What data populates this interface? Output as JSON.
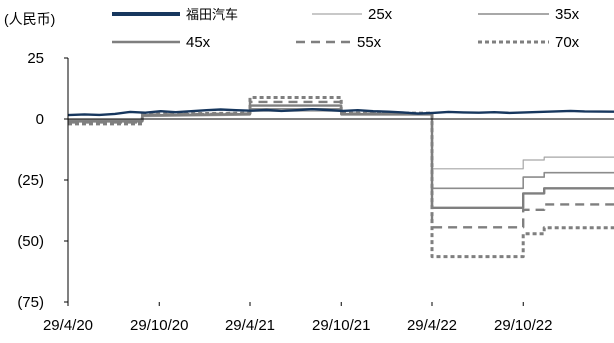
{
  "chart_data": {
    "type": "line",
    "unit_label": "(人民币)",
    "ylim": [
      -75,
      25
    ],
    "yticks": [
      25,
      0,
      -25,
      -50,
      -75
    ],
    "ytick_labels": [
      "25",
      "0",
      "(25)",
      "(50)",
      "(75)"
    ],
    "xlim": [
      "2020-04-29",
      "2023-04-29"
    ],
    "xticks": [
      "2020-04-29",
      "2020-10-29",
      "2021-04-29",
      "2021-10-29",
      "2022-04-29",
      "2022-10-29"
    ],
    "xtick_labels": [
      "29/4/20",
      "29/10/20",
      "29/4/21",
      "29/10/21",
      "29/4/22",
      "29/10/22"
    ],
    "grid": false,
    "legend_position": "top",
    "series": [
      {
        "name": "福田汽车",
        "color": "#17375E",
        "style": "solid-thick",
        "points": [
          [
            "2020-04-29",
            1.6
          ],
          [
            "2020-06-01",
            1.9
          ],
          [
            "2020-07-01",
            1.7
          ],
          [
            "2020-08-01",
            2.1
          ],
          [
            "2020-09-01",
            2.9
          ],
          [
            "2020-10-01",
            2.6
          ],
          [
            "2020-11-01",
            3.2
          ],
          [
            "2020-12-01",
            2.8
          ],
          [
            "2021-01-01",
            3.2
          ],
          [
            "2021-02-01",
            3.6
          ],
          [
            "2021-03-01",
            3.9
          ],
          [
            "2021-04-01",
            3.6
          ],
          [
            "2021-05-01",
            3.4
          ],
          [
            "2021-06-01",
            3.7
          ],
          [
            "2021-07-01",
            3.3
          ],
          [
            "2021-08-01",
            3.6
          ],
          [
            "2021-09-01",
            4.0
          ],
          [
            "2021-10-01",
            3.7
          ],
          [
            "2021-11-01",
            3.3
          ],
          [
            "2021-12-01",
            3.6
          ],
          [
            "2022-01-01",
            3.2
          ],
          [
            "2022-02-01",
            3.0
          ],
          [
            "2022-03-01",
            2.7
          ],
          [
            "2022-04-01",
            2.2
          ],
          [
            "2022-05-01",
            2.5
          ],
          [
            "2022-06-01",
            2.9
          ],
          [
            "2022-07-01",
            2.7
          ],
          [
            "2022-08-01",
            2.6
          ],
          [
            "2022-09-01",
            2.8
          ],
          [
            "2022-10-01",
            2.5
          ],
          [
            "2022-11-01",
            2.7
          ],
          [
            "2022-12-01",
            2.9
          ],
          [
            "2023-01-01",
            3.1
          ],
          [
            "2023-02-01",
            3.3
          ],
          [
            "2023-03-01",
            3.1
          ],
          [
            "2023-04-29",
            3.0
          ]
        ]
      },
      {
        "name": "25x",
        "color": "#A6A6A6",
        "style": "solid-thin",
        "points": [
          [
            "2020-04-29",
            -0.4
          ],
          [
            "2020-09-25",
            -0.4
          ],
          [
            "2020-09-25",
            1.0
          ],
          [
            "2021-04-29",
            1.6
          ],
          [
            "2021-04-29",
            3.2
          ],
          [
            "2021-10-29",
            3.2
          ],
          [
            "2021-10-29",
            1.6
          ],
          [
            "2022-04-29",
            1.6
          ],
          [
            "2022-04-29",
            -20.4
          ],
          [
            "2022-10-29",
            -20.4
          ],
          [
            "2022-10-29",
            -16.8
          ],
          [
            "2022-12-10",
            -16.8
          ],
          [
            "2022-12-10",
            -15.6
          ],
          [
            "2023-04-29",
            -15.6
          ]
        ]
      },
      {
        "name": "35x",
        "color": "#8C8C8C",
        "style": "solid-medium",
        "points": [
          [
            "2020-04-29",
            -0.7
          ],
          [
            "2020-09-25",
            -0.7
          ],
          [
            "2020-09-25",
            1.2
          ],
          [
            "2021-04-29",
            1.8
          ],
          [
            "2021-04-29",
            4.2
          ],
          [
            "2021-10-29",
            4.2
          ],
          [
            "2021-10-29",
            1.8
          ],
          [
            "2022-04-29",
            1.8
          ],
          [
            "2022-04-29",
            -28.4
          ],
          [
            "2022-10-29",
            -28.4
          ],
          [
            "2022-10-29",
            -23.8
          ],
          [
            "2022-12-10",
            -23.8
          ],
          [
            "2022-12-10",
            -22.0
          ],
          [
            "2023-04-29",
            -22.0
          ]
        ]
      },
      {
        "name": "45x",
        "color": "#7F7F7F",
        "style": "solid-thick",
        "points": [
          [
            "2020-04-29",
            -1.0
          ],
          [
            "2020-09-25",
            -1.0
          ],
          [
            "2020-09-25",
            1.5
          ],
          [
            "2021-04-29",
            2.0
          ],
          [
            "2021-04-29",
            5.5
          ],
          [
            "2021-10-29",
            5.5
          ],
          [
            "2021-10-29",
            2.0
          ],
          [
            "2022-04-29",
            2.0
          ],
          [
            "2022-04-29",
            -36.4
          ],
          [
            "2022-10-29",
            -36.4
          ],
          [
            "2022-10-29",
            -30.5
          ],
          [
            "2022-12-10",
            -30.5
          ],
          [
            "2022-12-10",
            -28.4
          ],
          [
            "2023-04-29",
            -28.4
          ]
        ]
      },
      {
        "name": "55x",
        "color": "#7F7F7F",
        "style": "dashed",
        "points": [
          [
            "2020-04-29",
            -1.4
          ],
          [
            "2020-09-25",
            -1.4
          ],
          [
            "2020-09-25",
            1.8
          ],
          [
            "2021-04-29",
            2.2
          ],
          [
            "2021-04-29",
            7.0
          ],
          [
            "2021-10-29",
            7.0
          ],
          [
            "2021-10-29",
            2.2
          ],
          [
            "2022-04-29",
            2.2
          ],
          [
            "2022-04-29",
            -44.4
          ],
          [
            "2022-10-29",
            -44.4
          ],
          [
            "2022-10-29",
            -37.2
          ],
          [
            "2022-12-10",
            -37.2
          ],
          [
            "2022-12-10",
            -35.0
          ],
          [
            "2023-04-29",
            -35.0
          ]
        ]
      },
      {
        "name": "70x",
        "color": "#7F7F7F",
        "style": "dotted",
        "points": [
          [
            "2020-04-29",
            -2.0
          ],
          [
            "2020-09-25",
            -2.0
          ],
          [
            "2020-09-25",
            2.0
          ],
          [
            "2021-04-29",
            2.4
          ],
          [
            "2021-04-29",
            8.8
          ],
          [
            "2021-10-29",
            8.8
          ],
          [
            "2021-10-29",
            2.4
          ],
          [
            "2022-04-29",
            2.4
          ],
          [
            "2022-04-29",
            -56.4
          ],
          [
            "2022-10-29",
            -56.4
          ],
          [
            "2022-10-29",
            -47.0
          ],
          [
            "2022-12-10",
            -47.0
          ],
          [
            "2022-12-10",
            -44.6
          ],
          [
            "2023-04-29",
            -44.6
          ]
        ]
      }
    ]
  }
}
